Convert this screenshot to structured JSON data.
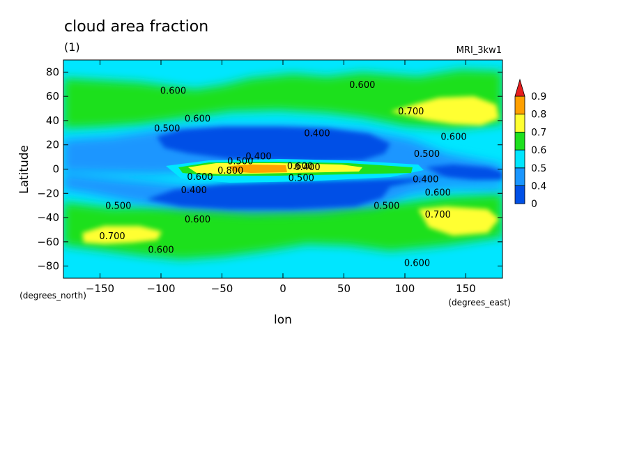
{
  "chart_data": {
    "type": "heatmap",
    "title": "cloud area fraction",
    "subtitle": "(1)",
    "model_label": "MRI_3kw1",
    "xlabel": "lon",
    "ylabel": "Latitude",
    "x_units": "(degrees_east)",
    "y_units": "(degrees_north)",
    "xlim": [
      -180,
      180
    ],
    "ylim": [
      -90,
      90
    ],
    "x_ticks": [
      -150,
      -100,
      -50,
      0,
      50,
      100,
      150
    ],
    "y_ticks": [
      80,
      60,
      40,
      20,
      0,
      -20,
      -40,
      -60,
      -80
    ],
    "colorbar": {
      "levels": [
        0,
        0.4,
        0.5,
        0.6,
        0.7,
        0.8,
        0.9
      ],
      "tick_labels": [
        "0",
        "0.4",
        "0.5",
        "0.6",
        "0.7",
        "0.8",
        "0.9"
      ],
      "colors": [
        "#0050e6",
        "#1a96ff",
        "#00e6ff",
        "#1ee01e",
        "#ffff32",
        "#ffa000",
        "#e61e1e"
      ],
      "extend": "max"
    },
    "contour_labels": [
      {
        "text": "0.600",
        "lon": -90,
        "lat": 65
      },
      {
        "text": "0.600",
        "lon": 65,
        "lat": 70
      },
      {
        "text": "0.700",
        "lon": 105,
        "lat": 48
      },
      {
        "text": "0.600",
        "lon": -70,
        "lat": 42
      },
      {
        "text": "0.500",
        "lon": -95,
        "lat": 34
      },
      {
        "text": "0.400",
        "lon": 28,
        "lat": 30
      },
      {
        "text": "0.600",
        "lon": 140,
        "lat": 27
      },
      {
        "text": "0.500",
        "lon": 118,
        "lat": 13
      },
      {
        "text": "0.400",
        "lon": -20,
        "lat": 11
      },
      {
        "text": "0.500",
        "lon": -35,
        "lat": 7
      },
      {
        "text": "0.600",
        "lon": -68,
        "lat": -6
      },
      {
        "text": "0.800",
        "lon": -43,
        "lat": -1
      },
      {
        "text": "0.600",
        "lon": 14,
        "lat": 3
      },
      {
        "text": "0.400",
        "lon": 20,
        "lat": 2
      },
      {
        "text": "0.500",
        "lon": 15,
        "lat": -7
      },
      {
        "text": "0.400",
        "lon": 117,
        "lat": -8
      },
      {
        "text": "0.400",
        "lon": -73,
        "lat": -17
      },
      {
        "text": "0.600",
        "lon": 127,
        "lat": -19
      },
      {
        "text": "0.500",
        "lon": -135,
        "lat": -30
      },
      {
        "text": "0.500",
        "lon": 85,
        "lat": -30
      },
      {
        "text": "0.600",
        "lon": -70,
        "lat": -41
      },
      {
        "text": "0.700",
        "lon": 127,
        "lat": -37
      },
      {
        "text": "0.700",
        "lon": -140,
        "lat": -55
      },
      {
        "text": "0.600",
        "lon": -100,
        "lat": -66
      },
      {
        "text": "0.600",
        "lon": 110,
        "lat": -77
      }
    ]
  }
}
